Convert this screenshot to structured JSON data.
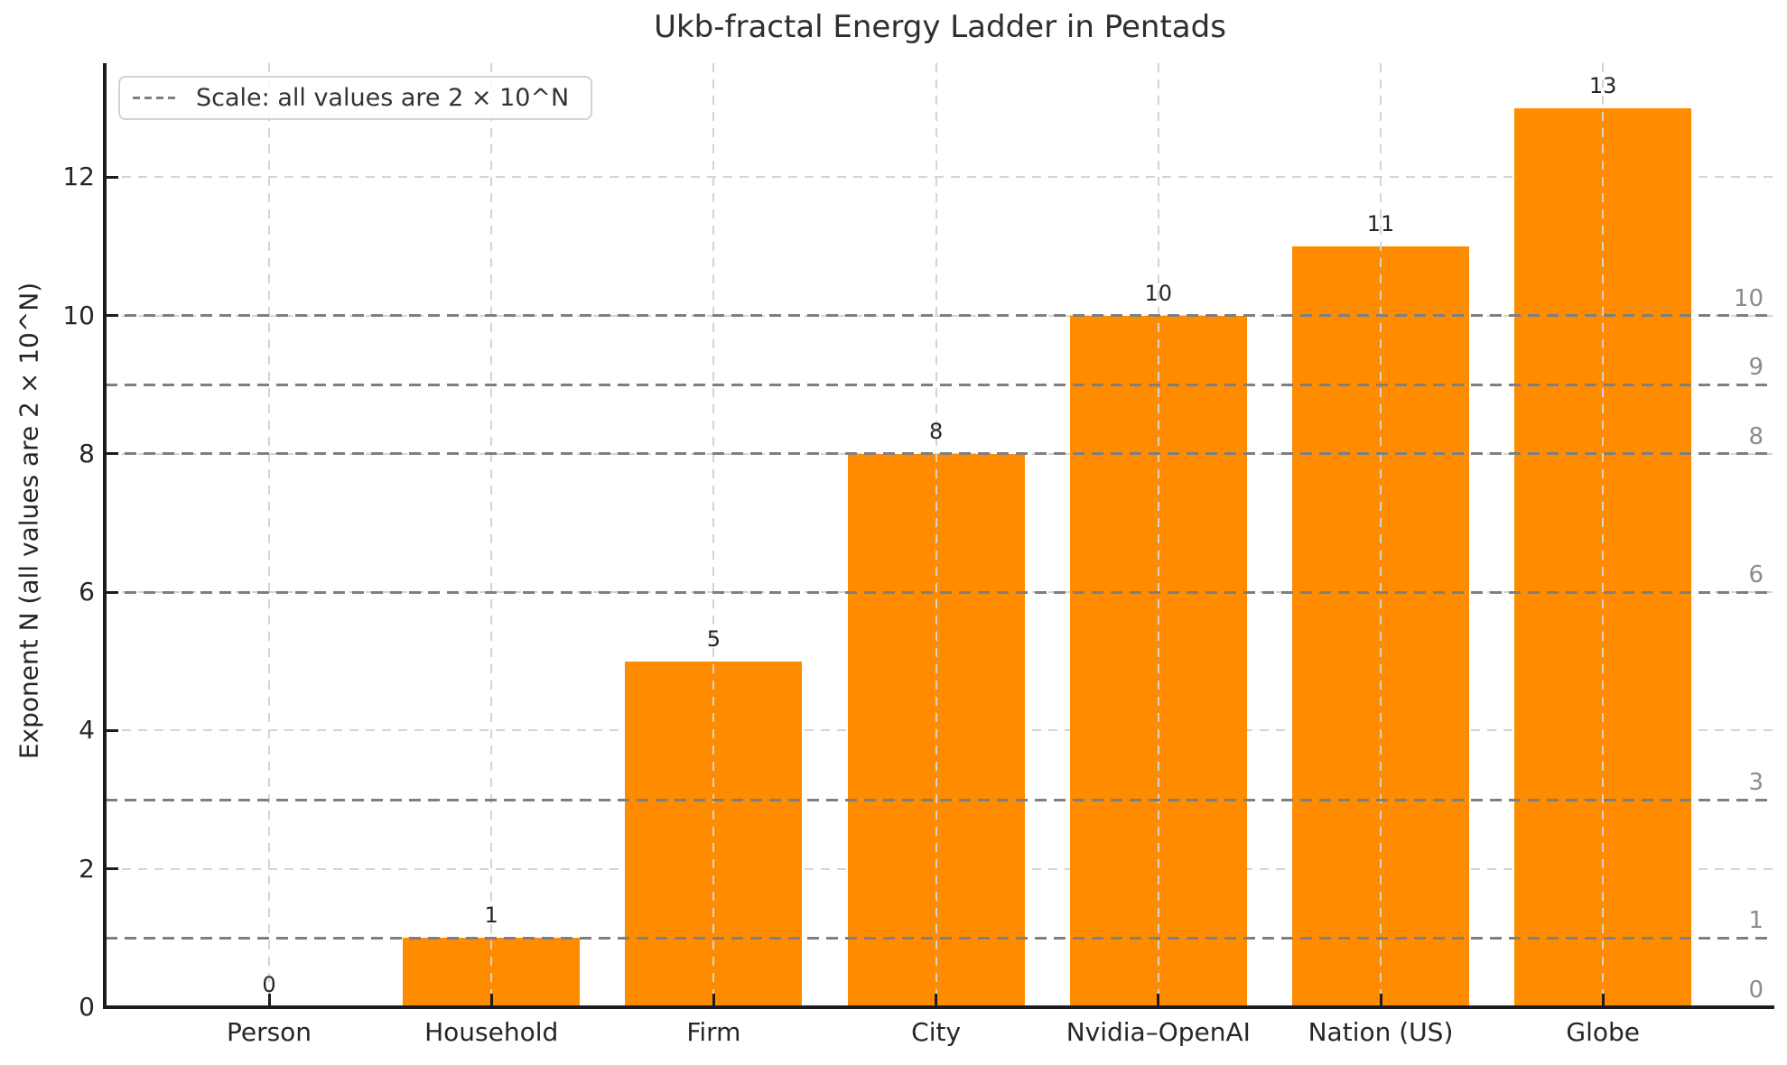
{
  "chart_data": {
    "type": "bar",
    "title": "Ukb-fractal Energy Ladder in Pentads",
    "ylabel": "Exponent N (all values are 2 × 10^N)",
    "categories": [
      "Person",
      "Household",
      "Firm",
      "City",
      "Nvidia–OpenAI",
      "Nation (US)",
      "Globe"
    ],
    "values": [
      0,
      1,
      5,
      8,
      10,
      11,
      13
    ],
    "bar_value_labels": [
      "0",
      "1",
      "5",
      "8",
      "10",
      "11",
      "13"
    ],
    "yticks": [
      0,
      2,
      4,
      6,
      8,
      10,
      12
    ],
    "ylim": [
      0,
      13.65
    ],
    "grid": true,
    "legend": {
      "label": "Scale: all values are 2 × 10^N",
      "position": "upper left",
      "line_style": "dashed"
    },
    "reference_lines": [
      {
        "value": 0,
        "label": "0"
      },
      {
        "value": 1,
        "label": "1"
      },
      {
        "value": 3,
        "label": "3"
      },
      {
        "value": 6,
        "label": "6"
      },
      {
        "value": 8,
        "label": "8"
      },
      {
        "value": 9,
        "label": "9"
      },
      {
        "value": 10,
        "label": "10"
      }
    ],
    "colors": {
      "bar": "#ff8c00",
      "grid": "#d4d4d4",
      "reference_line": "#7f7f7f",
      "reference_label": "#8c8c8c",
      "text": "#262626",
      "spine": "#1c1c1c",
      "legend_border": "#d3d3d3"
    }
  }
}
